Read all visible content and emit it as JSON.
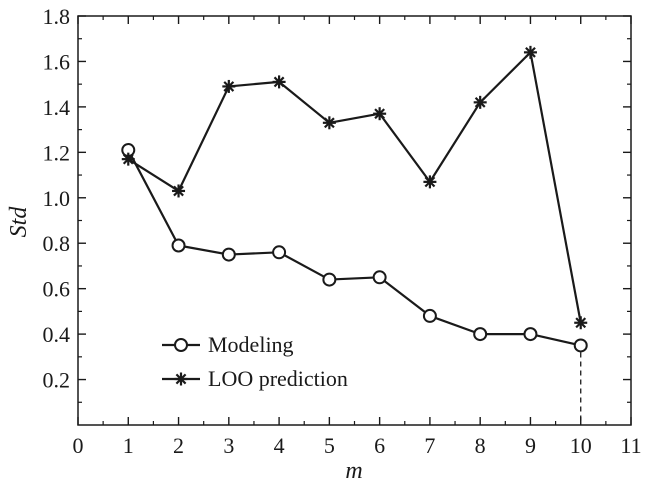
{
  "chart_data": {
    "type": "line",
    "title": "",
    "xlabel": "m",
    "ylabel": "Std",
    "xlim": [
      0,
      11
    ],
    "ylim": [
      0,
      1.8
    ],
    "x_ticks": [
      "0",
      "1",
      "2",
      "3",
      "4",
      "5",
      "6",
      "7",
      "8",
      "9",
      "10",
      "11"
    ],
    "y_ticks": [
      "0.2",
      "0.4",
      "0.6",
      "0.8",
      "1.0",
      "1.2",
      "1.4",
      "1.6",
      "1.8"
    ],
    "x": [
      1,
      2,
      3,
      4,
      5,
      6,
      7,
      8,
      9,
      10
    ],
    "series": [
      {
        "name": "Modeling",
        "marker": "circle",
        "values": [
          1.21,
          0.79,
          0.75,
          0.76,
          0.64,
          0.65,
          0.48,
          0.4,
          0.4,
          0.35
        ]
      },
      {
        "name": "LOO prediction",
        "marker": "asterisk",
        "values": [
          1.17,
          1.03,
          1.49,
          1.51,
          1.33,
          1.37,
          1.07,
          1.42,
          1.64,
          0.45
        ]
      }
    ],
    "legend_position": "bottom-left",
    "grid": false,
    "annotations": [
      "dashed vertical line from x=10 down to the x-axis"
    ],
    "colors": {
      "line": "#1a1a1a"
    }
  }
}
